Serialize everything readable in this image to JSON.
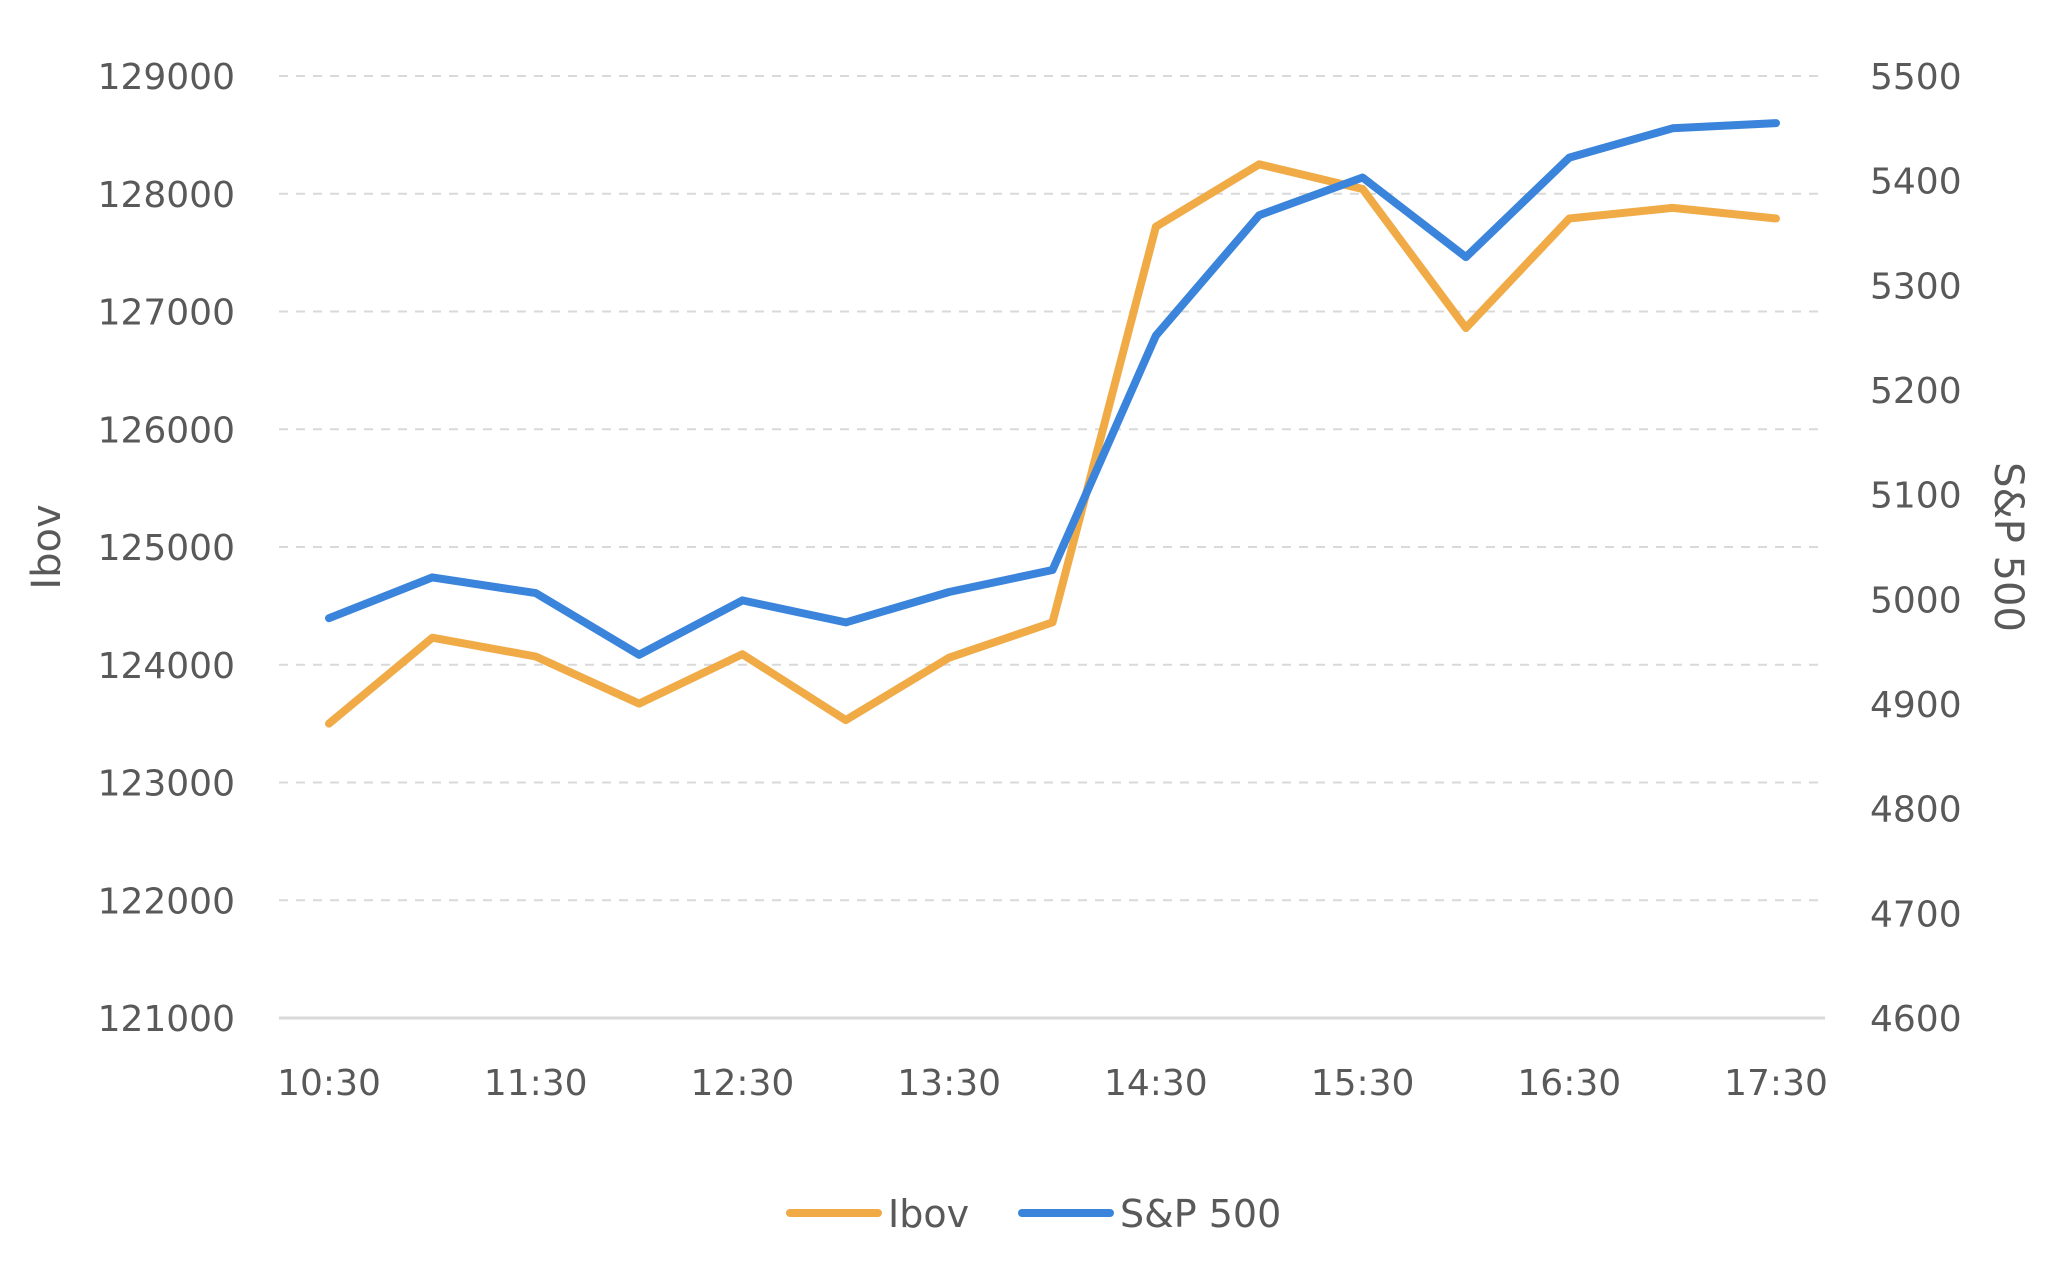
{
  "chart_data": {
    "type": "line",
    "title": "",
    "xlabel": "",
    "ylabel": "Ibov",
    "y2label": "S&P 500",
    "x": [
      "10:30",
      "11:00",
      "11:30",
      "12:00",
      "12:30",
      "13:00",
      "13:30",
      "14:00",
      "14:30",
      "15:00",
      "15:30",
      "16:00",
      "16:30",
      "17:00",
      "17:30"
    ],
    "x_tick_labels": [
      "10:30",
      "11:30",
      "12:30",
      "13:30",
      "14:30",
      "15:30",
      "16:30",
      "17:30"
    ],
    "y_ticks": [
      121000,
      122000,
      123000,
      124000,
      125000,
      126000,
      127000,
      128000,
      129000
    ],
    "y2_ticks": [
      4600,
      4700,
      4800,
      4900,
      5000,
      5100,
      5200,
      5300,
      5400,
      5500
    ],
    "ylim": [
      121000,
      129000
    ],
    "y2lim": [
      4600,
      5500
    ],
    "grid": true,
    "legend_position": "bottom",
    "series": [
      {
        "name": "Ibov",
        "axis": "left",
        "color": "#F0AB47",
        "values": [
          123500,
          124230,
          124070,
          123670,
          124090,
          123530,
          124060,
          124360,
          127720,
          128250,
          128040,
          126860,
          127790,
          127880,
          127790
        ]
      },
      {
        "name": "S&P 500",
        "axis": "right",
        "color": "#3B84DB",
        "values": [
          4982,
          5021,
          5006,
          4947,
          4999,
          4978,
          5007,
          5028,
          5252,
          5367,
          5403,
          5327,
          5422,
          5450,
          5455
        ]
      }
    ]
  }
}
